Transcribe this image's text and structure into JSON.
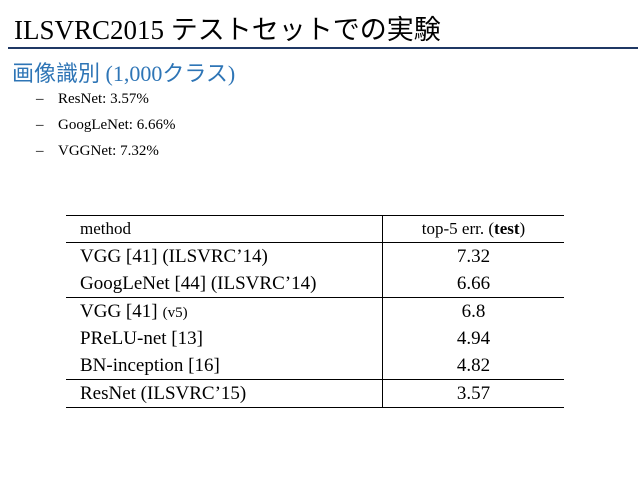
{
  "header": {
    "title": "ILSVRC2015 テストセットでの実験",
    "subtitle": "画像識別 (1,000クラス)"
  },
  "bullets": [
    "ResNet: 3.57%",
    "GoogLeNet: 6.66%",
    "VGGNet: 7.32%"
  ],
  "table": {
    "columns": [
      "method",
      [
        "top-5 err. (",
        "test",
        ")"
      ]
    ],
    "groups": [
      [
        {
          "method": "VGG [41] (ILSVRC’14)",
          "err": 7.32
        },
        {
          "method": "GoogLeNet [44] (ILSVRC’14)",
          "err": 6.66
        }
      ],
      [
        {
          "method": "VGG [41]",
          "note": "(v5)",
          "err": 6.8
        },
        {
          "method": "PReLU-net [13]",
          "err": 4.94
        },
        {
          "method": "BN-inception [16]",
          "err": 4.82
        }
      ],
      [
        {
          "method": "ResNet (ILSVRC’15)",
          "err": 3.57,
          "bold": true
        }
      ]
    ]
  }
}
